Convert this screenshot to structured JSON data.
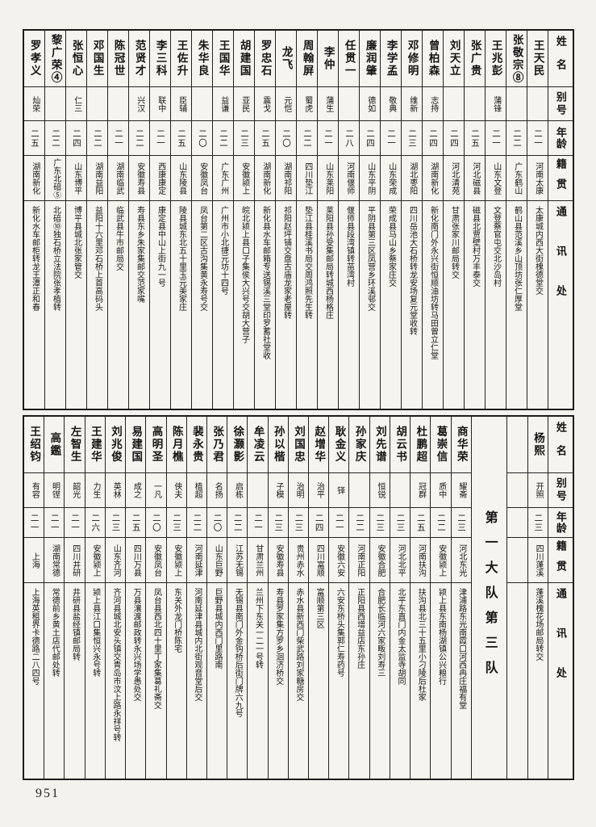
{
  "page": {
    "number": "951"
  },
  "headers": {
    "name": "姓名",
    "alias": "别号",
    "age": "年龄",
    "native": "籍贯",
    "address": "通讯处"
  },
  "top_table": {
    "people": [
      {
        "name": "王天民",
        "alias": "",
        "age": "二一",
        "native": "河南太康",
        "address": "太康城内西大街槐德堂交"
      },
      {
        "name": "张敬宗⑧",
        "alias": "",
        "age": "二二",
        "native": "广东鹤山",
        "address": "鹤山县范溪乡山顶坊张仁厚堂"
      },
      {
        "name": "王兆彭",
        "alias": "蒲锋",
        "age": "二一",
        "native": "山东文登",
        "address": "文登蔡官屯交北沙岛村"
      },
      {
        "name": "张广贵",
        "alias": "",
        "age": "二五",
        "native": "河北磁县",
        "address": "磁县北贾壁村万丰泰交"
      },
      {
        "name": "刘天立",
        "alias": "",
        "age": "二四",
        "native": "河北清苑",
        "address": "甘肃张家川邮局转交"
      },
      {
        "name": "曾柏森",
        "alias": "志持",
        "age": "二四",
        "native": "湖南新化",
        "address": "新化南门外永兴街恒顺油坊转马田曾立仁堂"
      },
      {
        "name": "邓修明",
        "alias": "维新",
        "age": "二三",
        "native": "湖北枣阳",
        "address": "四川岳池大石桥转龙安场复元堂收转"
      },
      {
        "name": "李学孟",
        "alias": "敬典",
        "age": "二一",
        "native": "山东荣成",
        "address": "荣成县马山乡蔡家庄交"
      },
      {
        "name": "廉润肇",
        "alias": "德如",
        "age": "二四",
        "native": "山东平阴",
        "address": "平阴县第三区凤营乡环溪邨交"
      },
      {
        "name": "任贯一",
        "alias": "",
        "age": "二八",
        "native": "河南偃师",
        "address": "偃师县段湾镇转苗湾村"
      },
      {
        "name": "李仲",
        "alias": "蒲生",
        "age": "二一",
        "native": "山东莱阳",
        "address": "莱阳县孙受集邮局转城西杨格庄"
      },
      {
        "name": "周翰屏",
        "alias": "蜀虎",
        "age": "二二",
        "native": "四川垫江",
        "address": "垫江县桂溪书局交周鸿照先生转"
      },
      {
        "name": "龙飞",
        "alias": "元恺",
        "age": "二〇",
        "native": "湖南祁阳",
        "address": "祁阳赵坪铺交盘古庙龙家老屋转"
      },
      {
        "name": "罗忠石",
        "alias": "震戈",
        "age": "二五",
        "native": "湖南新化",
        "address": "新化县水车邮箱专送锡溪三堂印罗蓄社堂收"
      },
      {
        "name": "胡建国",
        "alias": "亚民",
        "age": "二三",
        "native": "安徽颍上",
        "address": "皖北颍上县口子集侯大兴号交胡大营子"
      },
      {
        "name": "王国华",
        "alias": "益谦",
        "age": "二二",
        "native": "广东广州",
        "address": "广州市小北捷元坊十四号"
      },
      {
        "name": "朱华良",
        "alias": "",
        "age": "二〇",
        "native": "安徽凤台",
        "address": "凤台第二区古沟集黄永寿号交"
      },
      {
        "name": "王佐升",
        "alias": "臣辅",
        "age": "二五",
        "native": "山东陵县",
        "address": "陵县城东北五十里玉元美家庄"
      },
      {
        "name": "李三科",
        "alias": "联中",
        "age": "二一",
        "native": "西康康定",
        "address": "康定县中山上街九一号"
      },
      {
        "name": "范贤才",
        "alias": "兴汉",
        "age": "二二",
        "native": "安徽寿县",
        "address": "寿县东乡朱家集邮交范家嘴"
      },
      {
        "name": "陈冠世",
        "alias": "",
        "age": "二一",
        "native": "湖南临武",
        "address": "临武县牛市邮局交"
      },
      {
        "name": "邓国生",
        "alias": "",
        "age": "二二",
        "native": "湖南益阳",
        "address": "益阳十六里邓石桥上首高码头"
      },
      {
        "name": "张恒心",
        "alias": "仁三",
        "age": "二四",
        "native": "山东博平",
        "address": "博平县城北张家管交"
      },
      {
        "name": "黎广荣④",
        "alias": "",
        "age": "二二",
        "native": "广东北碚⑤",
        "address": "北碚⑩独石桥立法院张孝植转"
      },
      {
        "name": "罗孝义",
        "alias": "灿荣",
        "age": "二五",
        "native": "湖南新化",
        "address": "新化水车邮柜转龙王潭正和春"
      }
    ]
  },
  "bottom_table": {
    "right_person": {
      "name": "杨熙",
      "alias": "开照",
      "age": "二三",
      "native": "四川蓬溪",
      "address": "蓬溪槐花场邮局转交"
    },
    "unit_label": "第一大队第三队",
    "people": [
      {
        "name": "商华荣",
        "alias": "耀斋",
        "age": "二三",
        "native": "河北东光",
        "address": "津浦路东光南霞口河西冉庄福有堂"
      },
      {
        "name": "葛崇信",
        "alias": "质中",
        "age": "二二",
        "native": "安徽颍上",
        "address": "颍上县东南杨湖镇公兴粮行"
      },
      {
        "name": "杜鹏超",
        "alias": "冠群",
        "age": "二五",
        "native": "河南扶沟",
        "address": "扶沟县北三十五里小刁陵后杜家"
      },
      {
        "name": "胡云书",
        "alias": "",
        "age": "二三",
        "native": "河北北平",
        "address": "北平东直门内金太监寺胡同"
      },
      {
        "name": "刘先谱",
        "alias": "恒锐",
        "age": "二三",
        "native": "安徽合肥",
        "address": "合肥长临河六家畈刘寿三"
      },
      {
        "name": "孙家庆",
        "alias": "",
        "age": "二二",
        "native": "河南正阳",
        "address": "正阳县西增益店东孙庄"
      },
      {
        "name": "耿金义",
        "alias": "铎",
        "age": "二一",
        "native": "安徽六安",
        "address": "六安东桥头集郭仁寿药号"
      },
      {
        "name": "赵增华",
        "alias": "治平",
        "age": "二四",
        "native": "四川富顺",
        "address": "富顺第三区"
      },
      {
        "name": "刘国忠",
        "alias": "治明",
        "age": "二三",
        "native": "贵州赤水",
        "address": "赤水县新西门柴武路刘家糖房交"
      },
      {
        "name": "孙以楷",
        "alias": "子模",
        "age": "二三",
        "native": "安徽寿县",
        "address": "寿县罗家集方罗乡洄济桥交"
      },
      {
        "name": "牟凌云",
        "alias": "",
        "age": "二一",
        "native": "甘肃兰州",
        "address": "兰州下东关一二一号转"
      },
      {
        "name": "徐灏影",
        "alias": "启栋",
        "age": "二二",
        "native": "江苏无锡",
        "address": "无锡县南门外金钩桥后街门牌六九号"
      },
      {
        "name": "张乃君",
        "alias": "名扬",
        "age": "二〇",
        "native": "山东巨野",
        "address": "巨野县城内西门里路南"
      },
      {
        "name": "裴永贵",
        "alias": "植超",
        "age": "二二",
        "native": "河南延津",
        "address": "河南延津县城内北街观音堂后交"
      },
      {
        "name": "陈月樵",
        "alias": "侠夫",
        "age": "二三",
        "native": "安徽颍上",
        "address": "东关外龙门桥陈宅"
      },
      {
        "name": "高明圣",
        "alias": "一凡",
        "age": "二〇",
        "native": "安徽凤台",
        "address": "凤台县西北四十里丁家集葛礼斋交"
      },
      {
        "name": "易建国",
        "alias": "成之",
        "age": "二五",
        "native": "四川万县",
        "address": "万县瀼渡邮政转永兴场学愚处交"
      },
      {
        "name": "刘兆俊",
        "alias": "英林",
        "age": "二三",
        "native": "山东齐河",
        "address": "齐河县城北安头镇交青岛市汶上路永祥号转"
      },
      {
        "name": "王建华",
        "alias": "力生",
        "age": "二六",
        "native": "安徽颍上",
        "address": "颍上县江口集恒兴永号转"
      },
      {
        "name": "左智生",
        "alias": "韶光",
        "age": "二一",
        "native": "四川井研",
        "address": "井研县盐经镇邮局转"
      },
      {
        "name": "高鑑",
        "alias": "明铿",
        "age": "二一",
        "native": "湖南常德",
        "address": "常德前乡黄土店代邮处转"
      },
      {
        "name": "王绍钧",
        "alias": "有容",
        "age": "二一",
        "native": "上海",
        "address": "上海英租界卡德路二八四号"
      }
    ]
  }
}
